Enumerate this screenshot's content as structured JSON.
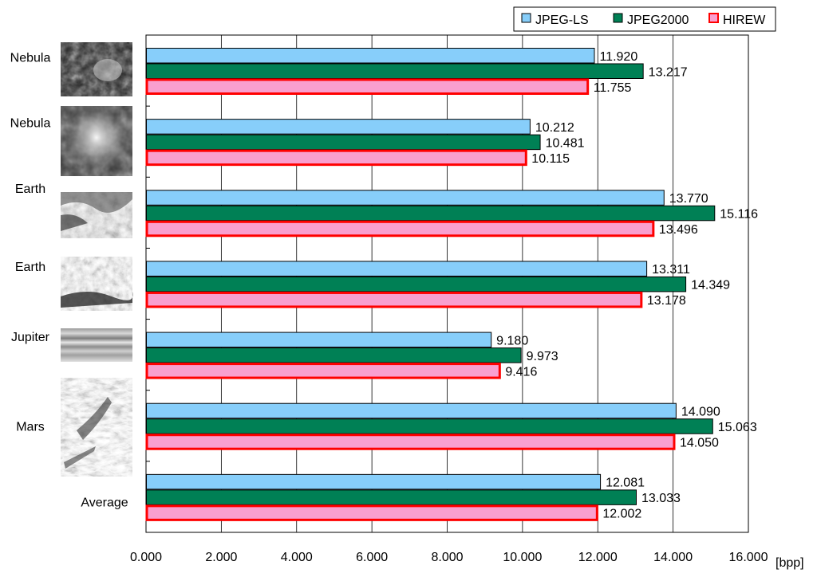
{
  "chart_data": {
    "type": "bar",
    "orientation": "horizontal",
    "categories": [
      "Nebula",
      "Nebula",
      "Earth",
      "Earth",
      "Jupiter",
      "Mars",
      "Average"
    ],
    "series": [
      {
        "name": "JPEG-LS",
        "color": "#87cefa",
        "border": "#000000",
        "values": [
          11.92,
          10.212,
          13.77,
          13.311,
          9.18,
          14.09,
          12.081
        ],
        "labels": [
          "11.920",
          "10.212",
          "13.770",
          "13.311",
          "9.180",
          "14.090",
          "12.081"
        ]
      },
      {
        "name": "JPEG2000",
        "color": "#008055",
        "border": "#000000",
        "values": [
          13.217,
          10.481,
          15.116,
          14.349,
          9.973,
          15.063,
          13.033
        ],
        "labels": [
          "13.217",
          "10.481",
          "15.116",
          "14.349",
          "9.973",
          "15.063",
          "13.033"
        ]
      },
      {
        "name": "HIREW",
        "color": "#f99fcf",
        "border": "#ff0000",
        "values": [
          11.755,
          10.115,
          13.496,
          13.178,
          9.416,
          14.05,
          12.002
        ],
        "labels": [
          "11.755",
          "10.115",
          "13.496",
          "13.178",
          "9.416",
          "14.050",
          "12.002"
        ]
      }
    ],
    "xlim": [
      0,
      16
    ],
    "xticks": [
      0,
      2,
      4,
      6,
      8,
      10,
      12,
      14,
      16
    ],
    "xtick_labels": [
      "0.000",
      "2.000",
      "4.000",
      "6.000",
      "8.000",
      "10.000",
      "12.000",
      "14.000",
      "16.000"
    ],
    "xlabel": "[bpp]",
    "grid": "vertical",
    "legend": "top-right",
    "thumbnails": [
      "nebula-dark",
      "nebula-bright",
      "earth-coast",
      "earth-terrain",
      "jupiter-bands",
      "mars-canyon"
    ]
  }
}
